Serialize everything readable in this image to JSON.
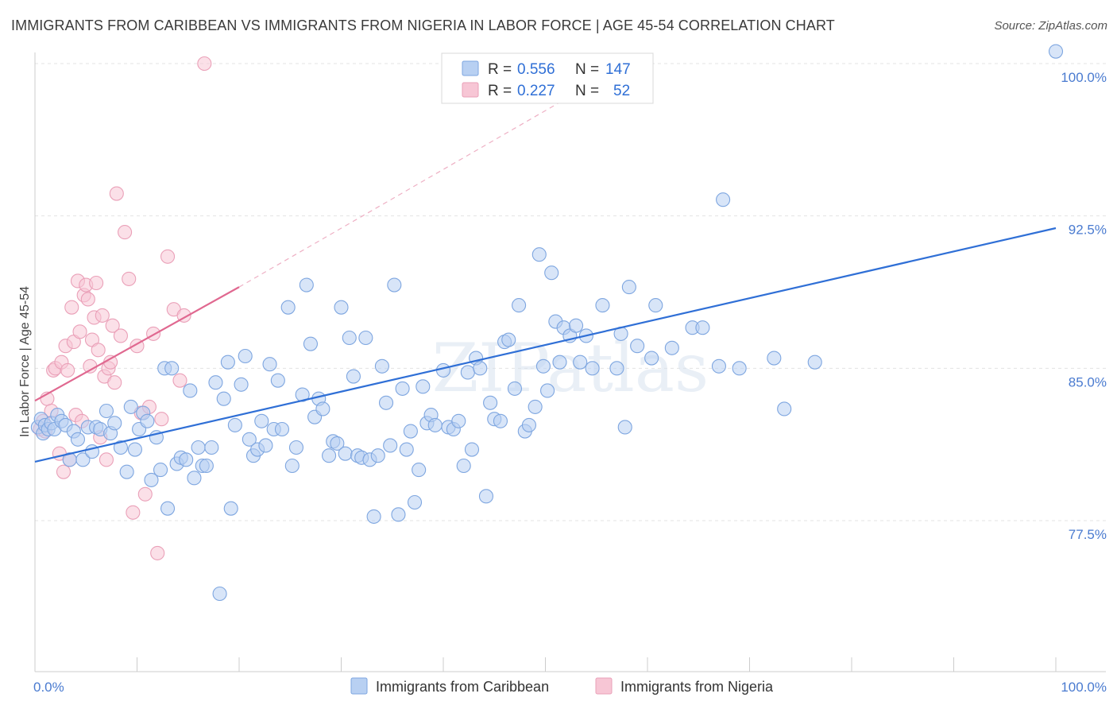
{
  "title": "IMMIGRANTS FROM CARIBBEAN VS IMMIGRANTS FROM NIGERIA IN LABOR FORCE | AGE 45-54 CORRELATION CHART",
  "source": "Source: ZipAtlas.com",
  "watermark": "ZIPatlas",
  "chart_data": {
    "type": "scatter",
    "title": "IMMIGRANTS FROM CARIBBEAN VS IMMIGRANTS FROM NIGERIA IN LABOR FORCE | AGE 45-54 CORRELATION CHART",
    "xlabel": "",
    "ylabel": "In Labor Force | Age 45-54",
    "xlim": [
      0,
      100
    ],
    "ylim": [
      70.5,
      101.5
    ],
    "x_tick_labels": [
      "0.0%",
      "100.0%"
    ],
    "y_ticks": [
      77.5,
      85.0,
      92.5,
      100.0
    ],
    "y_tick_labels": [
      "77.5%",
      "85.0%",
      "92.5%",
      "100.0%"
    ],
    "grid": true,
    "legend_position": "top-center",
    "legend": [
      {
        "r_label": "R =",
        "r_value": "0.556",
        "n_label": "N =",
        "n_value": "147"
      },
      {
        "r_label": "R =",
        "r_value": "0.227",
        "n_label": "N =",
        "n_value": "52"
      }
    ],
    "series": [
      {
        "name": "Immigrants from Caribbean",
        "color": "#7ea6e0",
        "fill": "#b8d0f2",
        "line_color": "#2f6fd6",
        "trend": {
          "x0": 0,
          "y0": 80.4,
          "x1": 100,
          "y1": 91.9
        },
        "points": [
          [
            0.3,
            82.1
          ],
          [
            0.6,
            82.5
          ],
          [
            0.8,
            81.8
          ],
          [
            1.0,
            82.2
          ],
          [
            1.3,
            82.0
          ],
          [
            1.6,
            82.3
          ],
          [
            1.9,
            82.0
          ],
          [
            2.2,
            82.7
          ],
          [
            2.6,
            82.4
          ],
          [
            3.0,
            82.2
          ],
          [
            3.4,
            80.5
          ],
          [
            3.8,
            81.9
          ],
          [
            4.2,
            81.5
          ],
          [
            4.7,
            80.5
          ],
          [
            5.2,
            82.1
          ],
          [
            5.6,
            80.9
          ],
          [
            6.0,
            82.1
          ],
          [
            6.4,
            82.0
          ],
          [
            7.0,
            82.9
          ],
          [
            7.4,
            81.8
          ],
          [
            7.8,
            82.3
          ],
          [
            8.4,
            81.1
          ],
          [
            9.0,
            79.9
          ],
          [
            9.4,
            83.1
          ],
          [
            9.8,
            81.0
          ],
          [
            10.2,
            82.0
          ],
          [
            10.6,
            82.8
          ],
          [
            11.0,
            82.4
          ],
          [
            11.4,
            79.5
          ],
          [
            11.9,
            81.6
          ],
          [
            12.3,
            80.0
          ],
          [
            12.7,
            85.0
          ],
          [
            13.0,
            78.1
          ],
          [
            13.4,
            85.0
          ],
          [
            13.9,
            80.3
          ],
          [
            14.3,
            80.6
          ],
          [
            14.8,
            80.5
          ],
          [
            15.2,
            83.9
          ],
          [
            15.6,
            79.6
          ],
          [
            16.0,
            81.1
          ],
          [
            16.4,
            80.2
          ],
          [
            16.8,
            80.2
          ],
          [
            17.3,
            81.1
          ],
          [
            17.7,
            84.3
          ],
          [
            18.1,
            73.9
          ],
          [
            18.5,
            83.5
          ],
          [
            18.9,
            85.3
          ],
          [
            19.2,
            78.1
          ],
          [
            19.6,
            82.2
          ],
          [
            20.2,
            84.2
          ],
          [
            20.6,
            85.6
          ],
          [
            21.0,
            81.5
          ],
          [
            21.4,
            80.7
          ],
          [
            21.8,
            81.0
          ],
          [
            22.2,
            82.4
          ],
          [
            22.6,
            81.2
          ],
          [
            23.0,
            85.2
          ],
          [
            23.4,
            82.0
          ],
          [
            23.8,
            84.4
          ],
          [
            24.2,
            82.0
          ],
          [
            24.8,
            88.0
          ],
          [
            25.2,
            80.2
          ],
          [
            25.6,
            81.1
          ],
          [
            26.2,
            83.7
          ],
          [
            26.6,
            89.1
          ],
          [
            27.0,
            86.2
          ],
          [
            27.4,
            82.6
          ],
          [
            27.8,
            83.5
          ],
          [
            28.2,
            83.0
          ],
          [
            28.8,
            80.7
          ],
          [
            29.2,
            81.4
          ],
          [
            29.6,
            81.3
          ],
          [
            30.0,
            88.0
          ],
          [
            30.4,
            80.8
          ],
          [
            30.8,
            86.5
          ],
          [
            31.2,
            84.6
          ],
          [
            31.6,
            80.7
          ],
          [
            32.0,
            80.6
          ],
          [
            32.4,
            86.5
          ],
          [
            32.8,
            80.5
          ],
          [
            33.2,
            77.7
          ],
          [
            33.6,
            80.7
          ],
          [
            34.0,
            85.1
          ],
          [
            34.4,
            83.3
          ],
          [
            34.8,
            81.2
          ],
          [
            35.2,
            89.1
          ],
          [
            35.6,
            77.8
          ],
          [
            36.0,
            84.0
          ],
          [
            36.4,
            81.0
          ],
          [
            36.8,
            81.9
          ],
          [
            37.2,
            78.4
          ],
          [
            37.6,
            80.0
          ],
          [
            38.0,
            84.1
          ],
          [
            38.4,
            82.3
          ],
          [
            38.8,
            82.7
          ],
          [
            39.2,
            82.2
          ],
          [
            40.0,
            84.9
          ],
          [
            40.5,
            82.1
          ],
          [
            41.0,
            82.0
          ],
          [
            41.5,
            82.4
          ],
          [
            42.0,
            80.2
          ],
          [
            42.4,
            84.8
          ],
          [
            42.8,
            81.0
          ],
          [
            43.2,
            85.5
          ],
          [
            43.6,
            85.0
          ],
          [
            44.2,
            78.7
          ],
          [
            44.6,
            83.3
          ],
          [
            45.0,
            82.5
          ],
          [
            45.6,
            82.4
          ],
          [
            46.0,
            86.3
          ],
          [
            46.4,
            86.4
          ],
          [
            47.0,
            84.0
          ],
          [
            47.4,
            88.1
          ],
          [
            48.0,
            81.9
          ],
          [
            48.4,
            82.2
          ],
          [
            49.0,
            83.1
          ],
          [
            49.4,
            90.6
          ],
          [
            49.8,
            85.1
          ],
          [
            50.2,
            83.9
          ],
          [
            50.6,
            89.7
          ],
          [
            51.0,
            87.3
          ],
          [
            51.4,
            85.3
          ],
          [
            51.8,
            87.0
          ],
          [
            52.4,
            86.6
          ],
          [
            53.0,
            87.1
          ],
          [
            53.4,
            85.3
          ],
          [
            54.0,
            86.6
          ],
          [
            54.6,
            85.0
          ],
          [
            55.6,
            88.1
          ],
          [
            57.0,
            85.0
          ],
          [
            57.4,
            86.7
          ],
          [
            57.8,
            82.1
          ],
          [
            58.2,
            89.0
          ],
          [
            59.0,
            86.1
          ],
          [
            60.4,
            85.5
          ],
          [
            60.8,
            88.1
          ],
          [
            62.4,
            86.0
          ],
          [
            64.4,
            87.0
          ],
          [
            65.4,
            87.0
          ],
          [
            67.0,
            85.1
          ],
          [
            67.4,
            93.3
          ],
          [
            69.0,
            85.0
          ],
          [
            72.4,
            85.5
          ],
          [
            73.4,
            83.0
          ],
          [
            76.4,
            85.3
          ],
          [
            100.0,
            100.6
          ]
        ]
      },
      {
        "name": "Immigrants from Nigeria",
        "color": "#eaa0b8",
        "fill": "#f7c6d5",
        "line_color": "#e06890",
        "trend": {
          "x0": 0,
          "y0": 83.4,
          "x1": 20,
          "y1": 89.0
        },
        "extension": {
          "x0": 20,
          "y0": 89.0,
          "x1": 58,
          "y1": 100.0
        },
        "points": [
          [
            0.5,
            82.0
          ],
          [
            0.8,
            82.4
          ],
          [
            1.0,
            81.9
          ],
          [
            1.2,
            83.5
          ],
          [
            1.6,
            82.9
          ],
          [
            1.8,
            84.9
          ],
          [
            2.0,
            85.0
          ],
          [
            2.4,
            80.8
          ],
          [
            2.6,
            85.3
          ],
          [
            2.8,
            79.9
          ],
          [
            3.0,
            86.1
          ],
          [
            3.2,
            84.9
          ],
          [
            3.4,
            80.5
          ],
          [
            3.6,
            88.0
          ],
          [
            3.8,
            86.3
          ],
          [
            4.0,
            82.7
          ],
          [
            4.2,
            89.3
          ],
          [
            4.4,
            86.8
          ],
          [
            4.6,
            82.4
          ],
          [
            4.8,
            88.6
          ],
          [
            5.0,
            89.1
          ],
          [
            5.2,
            88.4
          ],
          [
            5.4,
            85.1
          ],
          [
            5.6,
            86.4
          ],
          [
            5.8,
            87.5
          ],
          [
            6.0,
            89.2
          ],
          [
            6.2,
            85.9
          ],
          [
            6.4,
            81.6
          ],
          [
            6.6,
            87.6
          ],
          [
            6.8,
            84.6
          ],
          [
            7.0,
            80.5
          ],
          [
            7.2,
            85.0
          ],
          [
            7.4,
            85.3
          ],
          [
            7.6,
            87.1
          ],
          [
            7.8,
            84.3
          ],
          [
            8.0,
            93.6
          ],
          [
            8.4,
            86.6
          ],
          [
            8.8,
            91.7
          ],
          [
            9.2,
            89.4
          ],
          [
            9.6,
            77.9
          ],
          [
            10.0,
            86.1
          ],
          [
            10.4,
            82.8
          ],
          [
            10.8,
            78.8
          ],
          [
            11.2,
            83.1
          ],
          [
            11.6,
            86.7
          ],
          [
            12.0,
            75.9
          ],
          [
            12.4,
            82.5
          ],
          [
            13.0,
            90.5
          ],
          [
            13.6,
            87.9
          ],
          [
            14.2,
            84.4
          ],
          [
            14.6,
            87.6
          ],
          [
            16.6,
            100.0
          ]
        ]
      }
    ]
  },
  "bottom_legend": [
    "Immigrants from Caribbean",
    "Immigrants from Nigeria"
  ]
}
